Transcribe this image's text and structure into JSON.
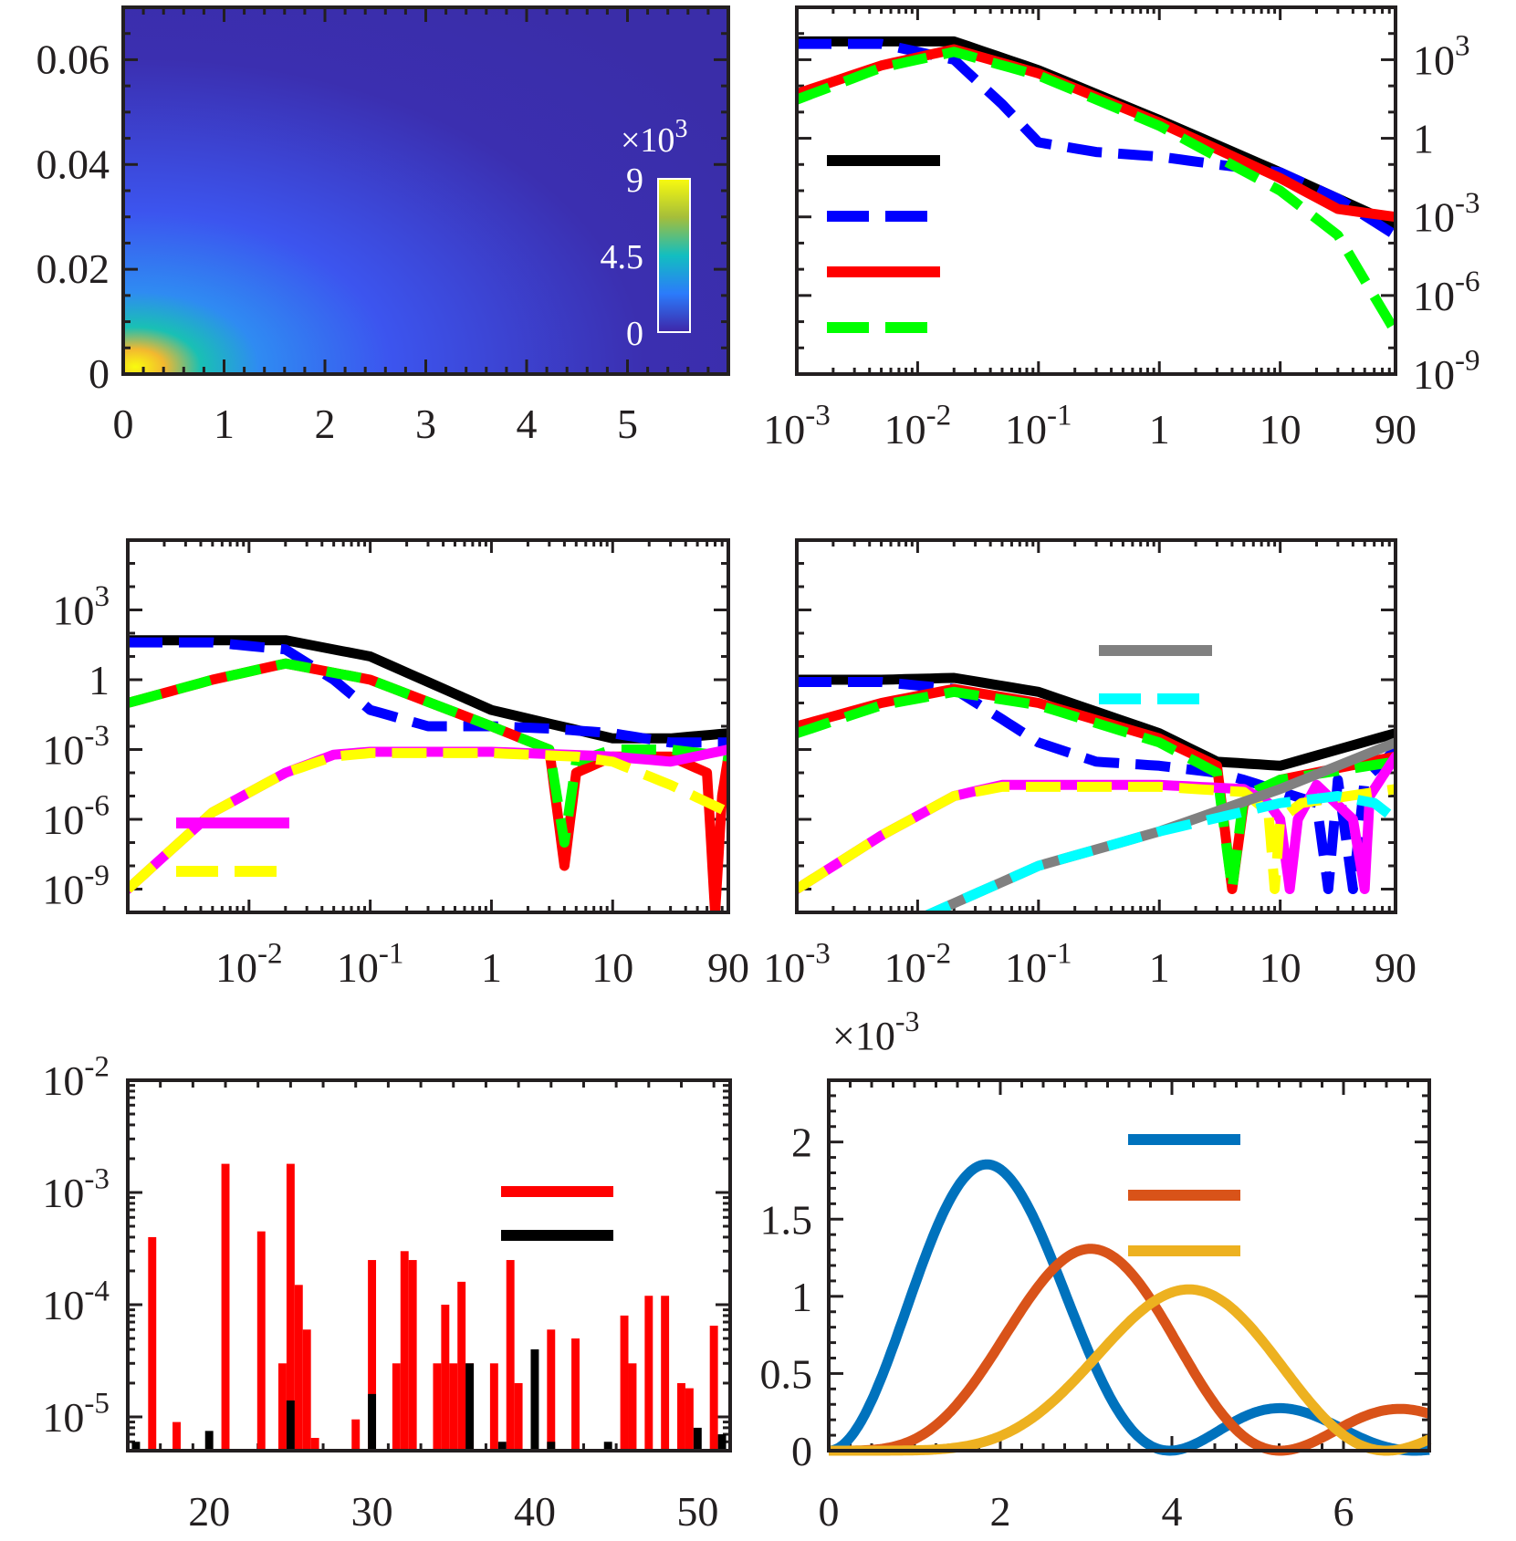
{
  "figure": {
    "colors": {
      "axis": "#231f20",
      "black": "#000000",
      "blue": "#0000ff",
      "red": "#ff0000",
      "green": "#00ff00",
      "magenta": "#ff00ff",
      "yellow": "#ffff00",
      "gray": "#808080",
      "cyan": "#00ffff",
      "mat_blue": "#0072bd",
      "mat_orange": "#d95319",
      "mat_yellow": "#edb120"
    }
  },
  "chart_data": [
    {
      "id": "a",
      "type": "heatmap",
      "title": "",
      "xlabel": "",
      "ylabel": "",
      "xlim": [
        0,
        6
      ],
      "ylim": [
        0,
        0.07
      ],
      "xticks": [
        0,
        1,
        2,
        3,
        4,
        5
      ],
      "xtick_labels": [
        "0",
        "1",
        "2",
        "3",
        "4",
        "5"
      ],
      "yticks": [
        0,
        0.02,
        0.04,
        0.06
      ],
      "ytick_labels": [
        "0",
        "0.02",
        "0.04",
        "0.06"
      ],
      "colorbar": {
        "min": 0,
        "max": 9,
        "ticks": [
          0,
          4.5,
          9
        ],
        "tick_labels": [
          "0",
          "4.5",
          "9"
        ],
        "multiplier_base": "×10",
        "multiplier_exp": "3"
      },
      "peak": {
        "x": 0.3,
        "y": 0.006,
        "value": 9
      }
    },
    {
      "id": "b",
      "type": "line",
      "xscale": "log",
      "yscale": "log",
      "xlim": [
        0.001,
        90
      ],
      "ylim": [
        1e-09,
        100000.0
      ],
      "yaxis_side": "right",
      "xticks": [
        0.001,
        0.01,
        0.1,
        1,
        10,
        90
      ],
      "xtick_labels": [
        [
          "10",
          "-3"
        ],
        [
          "10",
          "-2"
        ],
        [
          "10",
          "-1"
        ],
        [
          "1",
          ""
        ],
        [
          "10",
          ""
        ],
        [
          "90",
          ""
        ]
      ],
      "yticks": [
        1000.0,
        1,
        0.001,
        1e-06,
        1e-09
      ],
      "ytick_labels": [
        [
          "10",
          "3"
        ],
        [
          "1",
          ""
        ],
        [
          "10",
          "-3"
        ],
        [
          "10",
          "-6"
        ],
        [
          "10",
          "-9"
        ]
      ],
      "legend": [
        {
          "color": "black",
          "style": "solid"
        },
        {
          "color": "blue",
          "style": "dashed"
        },
        {
          "color": "red",
          "style": "solid"
        },
        {
          "color": "green",
          "style": "dashed"
        }
      ],
      "series": [
        {
          "name": "black",
          "color": "black",
          "style": "solid",
          "x": [
            0.001,
            0.005,
            0.02,
            0.1,
            1,
            10,
            90
          ],
          "y": [
            5000,
            5000,
            5000,
            400,
            5,
            0.05,
            0.0005
          ]
        },
        {
          "name": "blue",
          "color": "blue",
          "style": "dashed",
          "x": [
            0.001,
            0.005,
            0.02,
            0.05,
            0.1,
            0.3,
            1,
            3,
            10,
            30,
            90
          ],
          "y": [
            4000,
            4000,
            1000,
            20,
            0.7,
            0.3,
            0.2,
            0.1,
            0.05,
            0.005,
            0.0002
          ]
        },
        {
          "name": "red",
          "color": "red",
          "style": "solid",
          "x": [
            0.001,
            0.005,
            0.02,
            0.1,
            1,
            10,
            30,
            90
          ],
          "y": [
            50,
            600,
            2500,
            300,
            4,
            0.03,
            0.002,
            0.001
          ]
        },
        {
          "name": "green",
          "color": "green",
          "style": "dashed",
          "x": [
            0.001,
            0.005,
            0.02,
            0.1,
            1,
            10,
            30,
            90
          ],
          "y": [
            30,
            500,
            2000,
            250,
            3,
            0.01,
            0.0002,
            4e-08
          ]
        }
      ]
    },
    {
      "id": "c",
      "type": "line",
      "xscale": "log",
      "yscale": "log",
      "xlim": [
        0.001,
        90
      ],
      "ylim": [
        1e-10,
        1000000.0
      ],
      "yaxis_side": "left",
      "xticks": [
        0.01,
        0.1,
        1,
        10,
        90
      ],
      "xtick_labels": [
        [
          "10",
          "-2"
        ],
        [
          "10",
          "-1"
        ],
        [
          "1",
          ""
        ],
        [
          "10",
          ""
        ],
        [
          "90",
          ""
        ]
      ],
      "yticks": [
        1000.0,
        1,
        0.001,
        1e-06,
        1e-09
      ],
      "ytick_labels": [
        [
          "10",
          "3"
        ],
        [
          "1",
          ""
        ],
        [
          "10",
          "-3"
        ],
        [
          "10",
          "-6"
        ],
        [
          "10",
          "-9"
        ]
      ],
      "legend": [
        {
          "color": "magenta",
          "style": "solid"
        },
        {
          "color": "yellow",
          "style": "dashed"
        }
      ],
      "series": [
        {
          "name": "black",
          "color": "black",
          "style": "solid",
          "x": [
            0.001,
            0.005,
            0.02,
            0.1,
            1,
            10,
            30,
            90
          ],
          "y": [
            50,
            50,
            50,
            10,
            0.05,
            0.003,
            0.003,
            0.005
          ]
        },
        {
          "name": "blue",
          "color": "blue",
          "style": "dashed",
          "x": [
            0.001,
            0.005,
            0.02,
            0.05,
            0.1,
            0.3,
            1,
            3,
            10,
            30,
            90
          ],
          "y": [
            40,
            40,
            20,
            1,
            0.05,
            0.01,
            0.01,
            0.008,
            0.005,
            0.002,
            0.002
          ]
        },
        {
          "name": "red",
          "color": "red",
          "style": "solid",
          "x": [
            0.001,
            0.005,
            0.02,
            0.1,
            1,
            3,
            4,
            5,
            10,
            30,
            60,
            70,
            80,
            90
          ],
          "y": [
            0.1,
            1,
            5,
            1,
            0.01,
            0.001,
            1e-08,
            0.0001,
            0.0005,
            0.0005,
            0.0001,
            1e-10,
            1e-05,
            0.0005
          ]
        },
        {
          "name": "green",
          "color": "green",
          "style": "dashed",
          "x": [
            0.001,
            0.005,
            0.02,
            0.1,
            1,
            3,
            4,
            5,
            10,
            30,
            90
          ],
          "y": [
            0.1,
            1,
            5,
            1,
            0.01,
            0.001,
            1e-07,
            0.0003,
            0.001,
            0.001,
            0.0005
          ]
        },
        {
          "name": "magenta",
          "color": "magenta",
          "style": "solid",
          "x": [
            0.001,
            0.005,
            0.02,
            0.05,
            0.1,
            1,
            10,
            30,
            90
          ],
          "y": [
            1e-09,
            2e-06,
            0.0001,
            0.0006,
            0.0008,
            0.0008,
            0.0005,
            0.0003,
            0.001
          ]
        },
        {
          "name": "yellow",
          "color": "yellow",
          "style": "dashed",
          "x": [
            0.001,
            0.005,
            0.02,
            0.05,
            0.1,
            1,
            5,
            10,
            30,
            90
          ],
          "y": [
            1e-09,
            2e-06,
            0.0001,
            0.0005,
            0.0007,
            0.0007,
            0.0005,
            0.0003,
            3e-05,
            2e-06
          ]
        }
      ]
    },
    {
      "id": "d",
      "type": "line",
      "xscale": "log",
      "yscale": "log",
      "xlim": [
        0.001,
        90
      ],
      "ylim": [
        1e-10,
        1000000.0
      ],
      "yaxis_side": "none",
      "xticks": [
        0.001,
        0.01,
        0.1,
        1,
        10,
        90
      ],
      "xtick_labels": [
        [
          "10",
          "-3"
        ],
        [
          "10",
          "-2"
        ],
        [
          "10",
          "-1"
        ],
        [
          "1",
          ""
        ],
        [
          "10",
          ""
        ],
        [
          "90",
          ""
        ]
      ],
      "legend": [
        {
          "color": "gray",
          "style": "solid"
        },
        {
          "color": "cyan",
          "style": "dashed"
        }
      ],
      "series": [
        {
          "name": "black",
          "color": "black",
          "style": "solid",
          "x": [
            0.001,
            0.005,
            0.02,
            0.1,
            1,
            3,
            10,
            30,
            90
          ],
          "y": [
            1,
            1,
            1.2,
            0.3,
            0.005,
            0.0003,
            0.0002,
            0.001,
            0.005
          ]
        },
        {
          "name": "blue",
          "color": "blue",
          "style": "dashed",
          "x": [
            0.001,
            0.005,
            0.02,
            0.05,
            0.1,
            0.3,
            1,
            3,
            5,
            20,
            25,
            30,
            40,
            50,
            90
          ],
          "y": [
            0.8,
            0.8,
            0.4,
            0.02,
            0.002,
            0.0003,
            0.0002,
            0.0001,
            5e-05,
            5e-06,
            1e-09,
            5e-05,
            1e-09,
            5e-05,
            0.001
          ]
        },
        {
          "name": "red",
          "color": "red",
          "style": "solid",
          "x": [
            0.001,
            0.005,
            0.02,
            0.1,
            1,
            3,
            4,
            5,
            10,
            90
          ],
          "y": [
            0.01,
            0.1,
            0.4,
            0.1,
            0.003,
            0.0002,
            1e-09,
            5e-06,
            5e-05,
            0.0005
          ]
        },
        {
          "name": "green",
          "color": "green",
          "style": "dashed",
          "x": [
            0.001,
            0.005,
            0.02,
            0.1,
            1,
            3,
            4,
            5,
            10,
            90
          ],
          "y": [
            0.005,
            0.08,
            0.3,
            0.08,
            0.002,
            0.0001,
            1e-09,
            1e-05,
            5e-05,
            0.0003
          ]
        },
        {
          "name": "magenta",
          "color": "magenta",
          "style": "solid",
          "x": [
            0.001,
            0.005,
            0.02,
            0.05,
            0.1,
            1,
            5,
            8,
            10,
            12,
            14,
            20,
            40,
            50,
            55,
            90
          ],
          "y": [
            1e-09,
            2e-07,
            1e-05,
            3e-05,
            3e-05,
            3e-05,
            2e-05,
            5e-06,
            1e-06,
            1e-09,
            1e-06,
            3e-05,
            1e-06,
            1e-09,
            1e-05,
            0.0005
          ]
        },
        {
          "name": "yellow",
          "color": "yellow",
          "style": "dashed",
          "x": [
            0.001,
            0.005,
            0.02,
            0.05,
            0.1,
            1,
            5,
            8,
            9,
            10,
            15,
            90
          ],
          "y": [
            1e-09,
            2e-07,
            1e-05,
            2.5e-05,
            2.5e-05,
            2.5e-05,
            1.5e-05,
            2e-06,
            1e-09,
            1e-06,
            5e-06,
            2e-05
          ]
        },
        {
          "name": "gray",
          "color": "gray",
          "style": "solid",
          "x": [
            0.01,
            0.1,
            1,
            10,
            90
          ],
          "y": [
            5e-11,
            1e-08,
            3e-07,
            2e-05,
            0.002
          ]
        },
        {
          "name": "cyan",
          "color": "cyan",
          "style": "dashed",
          "x": [
            0.01,
            0.1,
            1,
            10,
            30,
            60,
            90
          ],
          "y": [
            5e-11,
            1e-08,
            3e-07,
            5e-06,
            1e-05,
            5e-06,
            1e-06
          ]
        }
      ]
    },
    {
      "id": "e",
      "type": "bar",
      "yscale": "log",
      "xlim": [
        15,
        52
      ],
      "ylim": [
        5e-06,
        0.01
      ],
      "xticks": [
        20,
        30,
        40,
        50
      ],
      "xtick_labels": [
        "20",
        "30",
        "40",
        "50"
      ],
      "yticks": [
        1e-05,
        0.0001,
        0.001,
        0.01
      ],
      "ytick_labels": [
        [
          "10",
          "-5"
        ],
        [
          "10",
          "-4"
        ],
        [
          "10",
          "-3"
        ],
        [
          "10",
          "-2"
        ]
      ],
      "legend": [
        {
          "color": "red",
          "style": "solid"
        },
        {
          "color": "black",
          "style": "solid"
        }
      ],
      "series": [
        {
          "name": "red",
          "color": "red",
          "x": [
            16.5,
            18,
            21,
            23.2,
            24.5,
            25,
            25.5,
            26,
            26.5,
            29,
            30,
            31.5,
            32,
            32.5,
            34,
            34.5,
            35,
            35.5,
            36,
            37.5,
            38.5,
            39,
            41,
            42.5,
            45.5,
            46,
            47,
            48,
            49,
            49.5,
            51
          ],
          "y": [
            0.0004,
            9e-06,
            0.0018,
            0.00045,
            3e-05,
            0.0018,
            0.00015,
            6e-05,
            6.5e-06,
            9.5e-06,
            0.00025,
            3e-05,
            0.0003,
            0.00025,
            3e-05,
            0.0001,
            3e-05,
            0.00016,
            3e-05,
            3e-05,
            0.00025,
            2e-05,
            6e-05,
            5e-05,
            8e-05,
            3e-05,
            0.00012,
            0.00012,
            2e-05,
            1.8e-05,
            6.5e-05
          ]
        },
        {
          "name": "black",
          "color": "black",
          "x": [
            15.5,
            20,
            25,
            30,
            36,
            38,
            40,
            41,
            44.5,
            50,
            51.5
          ],
          "y": [
            6e-06,
            7.5e-06,
            1.4e-05,
            1.6e-05,
            3e-05,
            6e-06,
            4e-05,
            6e-06,
            6e-06,
            8e-06,
            7e-06
          ]
        }
      ]
    },
    {
      "id": "f",
      "type": "line",
      "xlim": [
        0,
        7
      ],
      "ylim": [
        0,
        0.0024
      ],
      "xticks": [
        0,
        2,
        4,
        6
      ],
      "xtick_labels": [
        "0",
        "2",
        "4",
        "6"
      ],
      "yticks": [
        0,
        0.0005,
        0.001,
        0.0015,
        0.002
      ],
      "ytick_labels": [
        "0",
        "0.5",
        "1",
        "1.5",
        "2"
      ],
      "multiplier_base": "×10",
      "multiplier_exp": "-3",
      "legend": [
        {
          "color": "mat_blue",
          "style": "solid"
        },
        {
          "color": "mat_orange",
          "style": "solid"
        },
        {
          "color": "mat_yellow",
          "style": "solid"
        }
      ],
      "series": [
        {
          "name": "mat_blue",
          "color": "mat_blue",
          "l": 1,
          "scale": 0.001855,
          "xpeak": 1.84
        },
        {
          "name": "mat_orange",
          "color": "mat_orange",
          "l": 2,
          "scale": 0.001308,
          "xpeak": 3.05
        },
        {
          "name": "mat_yellow",
          "color": "mat_yellow",
          "l": 3,
          "scale": 0.001045,
          "xpeak": 4.2
        }
      ]
    }
  ]
}
